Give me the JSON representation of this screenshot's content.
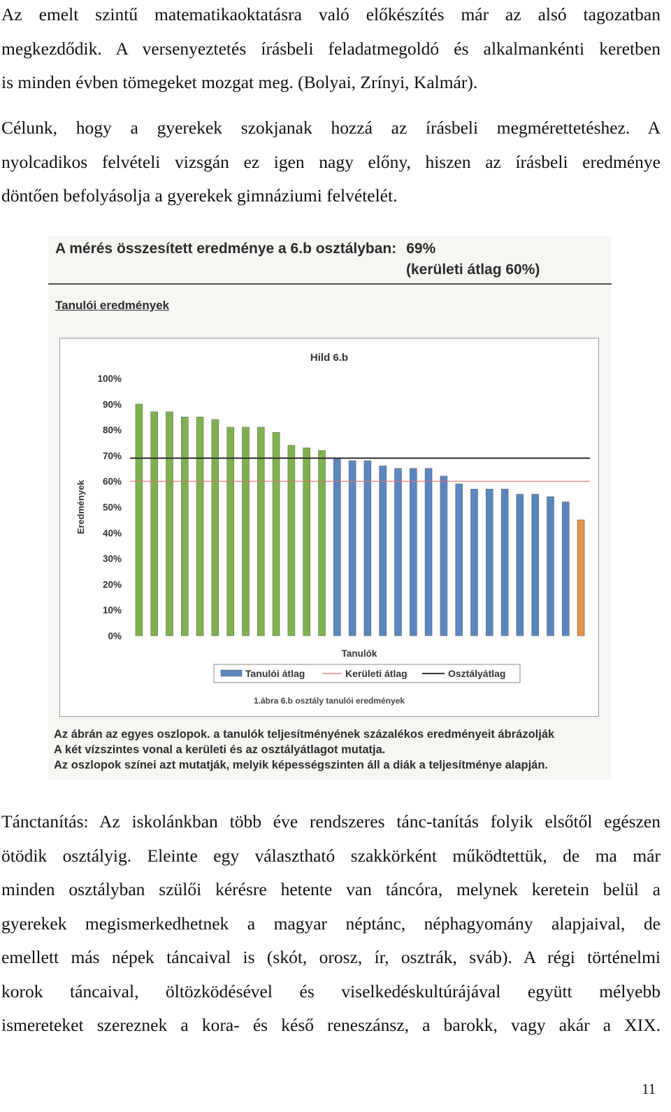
{
  "paragraphs": [
    {
      "lines": [
        "Az emelt szintű matematikaoktatásra való előkészítés már az alsó tagozatban",
        "megkezdődik. A versenyeztetés írásbeli feladatmegoldó és alkalmankénti keretben",
        "is minden évben tömegeket mozgat meg. (Bolyai, Zrínyi, Kalmár)."
      ]
    },
    {
      "lines": [
        "Célunk, hogy a gyerekek szokjanak hozzá az írásbeli megmérettetéshez. A",
        "nyolcadikos felvételi vizsgán ez igen nagy előny, hiszen az írásbeli eredménye",
        "döntően befolyásolja a gyerekek gimnáziumi felvételét."
      ]
    },
    {
      "lines": [
        "Tánctanítás: Az iskolánkban több éve rendszeres tánc-tanítás folyik elsőtől egészen",
        "ötödik osztályig. Eleinte egy választható szakkörként működtettük, de ma már",
        "minden osztályban szülői kérésre hetente van táncóra, melynek keretein belül a",
        "gyerekek megismerkedhetnek a magyar néptánc, néphagyomány alapjaival, de",
        "emellett más népek táncaival is (skót, orosz, ír, osztrák, sváb). A régi történelmi",
        "korok táncaival, öltözködésével és viselkedéskultúrájával együtt mélyebb",
        "ismereteket szereznek a kora- és késő reneszánsz, a barokk, vagy akár a XIX."
      ]
    }
  ],
  "scan": {
    "title": "A mérés összesített eredménye a 6.b osztályban:",
    "title_value": "69%",
    "subtitle": "(kerületi átlag 60%)",
    "heading": "Tanulói eredmények",
    "notes": [
      "Az ábrán az egyes oszlopok. a tanulók teljesítményének százalékos eredményeit ábrázolják",
      "A két vízszintes vonal a kerületi és az osztályátlagot mutatja.",
      "Az oszlopok színei azt mutatják, melyik képességszinten áll a diák a teljesítménye alapján."
    ]
  },
  "chart_data": {
    "type": "bar",
    "title": "Hild 6.b",
    "xlabel": "Tanulók",
    "ylabel": "Eredmények",
    "caption": "1.ábra 6.b osztály tanulói eredmények",
    "ylim": [
      0,
      100
    ],
    "yticks": [
      "0%",
      "10%",
      "20%",
      "30%",
      "40%",
      "50%",
      "60%",
      "70%",
      "80%",
      "90%",
      "100%"
    ],
    "values": [
      90,
      87,
      87,
      85,
      85,
      84,
      81,
      81,
      81,
      79,
      74,
      73,
      72,
      69,
      68,
      68,
      66,
      65,
      65,
      65,
      62,
      59,
      57,
      57,
      57,
      55,
      55,
      54,
      52,
      45
    ],
    "bar_colors": [
      "green",
      "green",
      "green",
      "green",
      "green",
      "green",
      "green",
      "green",
      "green",
      "green",
      "green",
      "green",
      "green",
      "blue",
      "blue",
      "blue",
      "blue",
      "blue",
      "blue",
      "blue",
      "blue",
      "blue",
      "blue",
      "blue",
      "blue",
      "blue",
      "blue",
      "blue",
      "blue",
      "orange"
    ],
    "colors": {
      "green": "#7fb24e",
      "blue": "#5b86c0",
      "orange": "#e8924a",
      "district_line": "#e07070",
      "class_line": "#333333"
    },
    "district_average": 60,
    "class_average": 69,
    "legend": [
      "Tanulói átlag",
      "Kerületi átlag",
      "Osztályátlag"
    ],
    "legend_position": "bottom",
    "grid": false
  },
  "page_number": "11"
}
